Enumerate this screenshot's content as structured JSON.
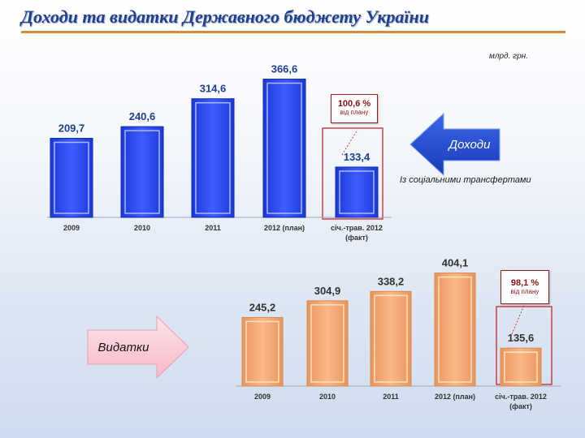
{
  "title": "Доходи та видатки Державного бюджету України",
  "units": "млрд. грн.",
  "revenue": {
    "arrow_label": "Доходи",
    "note": "Із соціальними трансфертами",
    "plan_pct": "100,6 %",
    "plan_note": "від плану",
    "colors": {
      "bar": "#2244ee",
      "bar_light": "#6f86ff",
      "value": "#1f3f8f"
    }
  },
  "expenditure": {
    "arrow_label": "Видатки",
    "plan_pct": "98,1 %",
    "plan_note": "від плану",
    "colors": {
      "bar": "#f3a874",
      "bar_light": "#ffd6b4",
      "value": "#333333"
    }
  },
  "chart_data": [
    {
      "type": "bar",
      "categories": [
        "2009",
        "2010",
        "2011",
        "2012 (план)",
        "січ.-трав. 2012 (факт)"
      ],
      "values": [
        209.7,
        240.6,
        314.6,
        366.6,
        133.4
      ],
      "data_labels": [
        "209,7",
        "240,6",
        "314,6",
        "366,6",
        "133,4"
      ],
      "title": "",
      "xlabel": "",
      "ylabel": ""
    },
    {
      "type": "bar",
      "categories": [
        "2009",
        "2010",
        "2011",
        "2012 (план)",
        "січ.-трав. 2012 (факт)"
      ],
      "values": [
        245.2,
        304.9,
        338.2,
        404.1,
        135.6
      ],
      "data_labels": [
        "245,2",
        "304,9",
        "338,2",
        "404,1",
        "135,6"
      ],
      "title": "",
      "xlabel": "",
      "ylabel": ""
    }
  ]
}
